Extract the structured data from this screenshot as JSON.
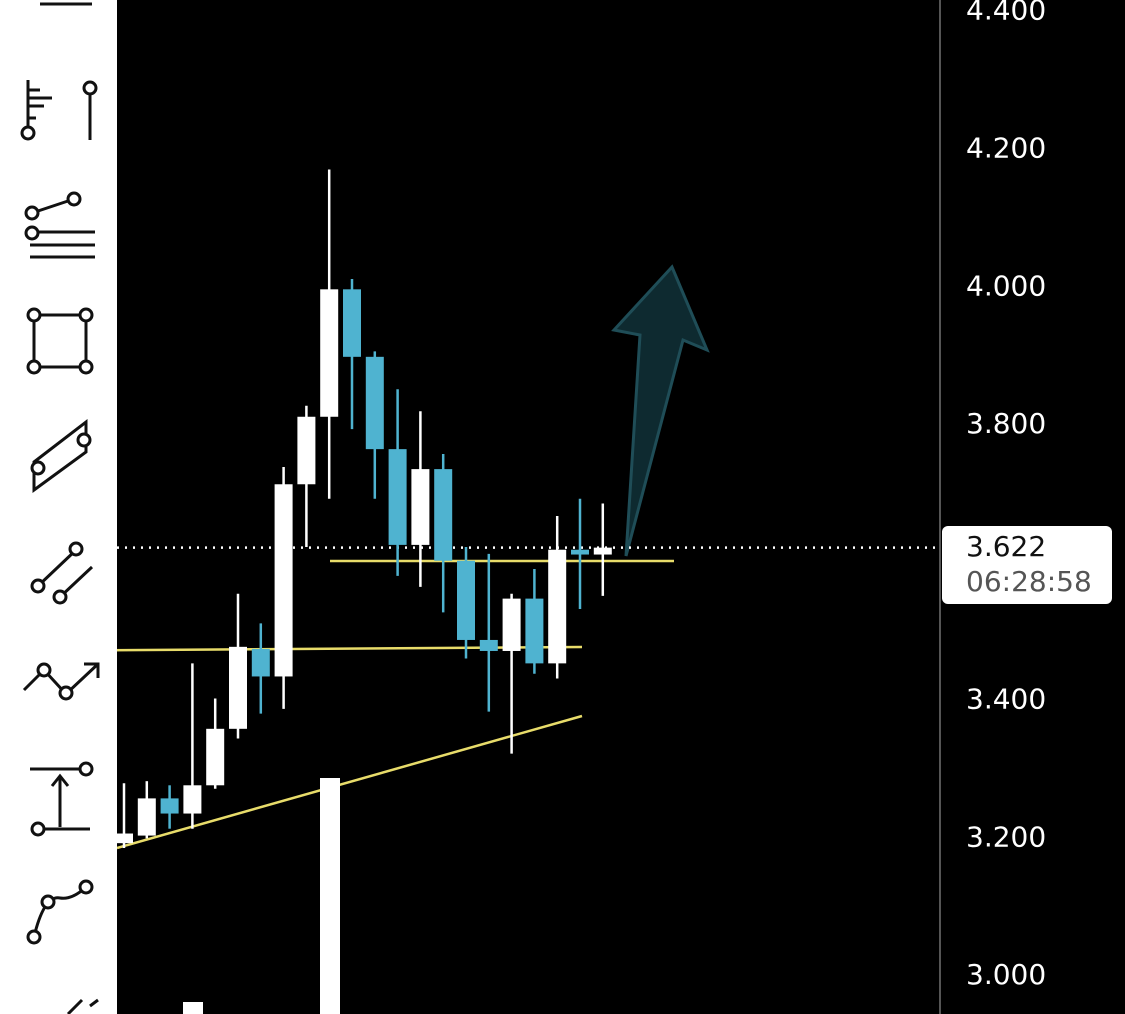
{
  "chart_data": {
    "type": "candlestick",
    "categories": [
      null,
      null,
      null,
      null,
      null,
      null,
      null,
      null,
      null,
      null,
      null,
      null,
      null,
      null,
      null,
      null,
      null,
      null,
      null,
      null,
      null,
      null
    ],
    "open": [
      3.193,
      3.204,
      3.258,
      3.236,
      3.277,
      3.359,
      3.475,
      3.435,
      3.714,
      3.812,
      3.997,
      3.899,
      3.765,
      3.626,
      3.736,
      3.603,
      3.488,
      3.472,
      3.548,
      3.454,
      3.619,
      3.612
    ],
    "high": [
      3.28,
      3.283,
      3.277,
      3.454,
      3.403,
      3.555,
      3.512,
      3.739,
      3.828,
      4.171,
      4.012,
      3.907,
      3.852,
      3.82,
      3.758,
      3.623,
      3.613,
      3.555,
      3.591,
      3.668,
      3.693,
      3.686
    ],
    "low": [
      3.186,
      3.2,
      3.214,
      3.214,
      3.272,
      3.345,
      3.381,
      3.388,
      3.623,
      3.693,
      3.794,
      3.693,
      3.581,
      3.565,
      3.528,
      3.461,
      3.384,
      3.323,
      3.439,
      3.432,
      3.533,
      3.552
    ],
    "close": [
      3.207,
      3.258,
      3.236,
      3.277,
      3.359,
      3.478,
      3.435,
      3.714,
      3.812,
      3.997,
      3.899,
      3.765,
      3.626,
      3.736,
      3.603,
      3.488,
      3.472,
      3.548,
      3.454,
      3.619,
      3.612,
      3.622
    ],
    "up_color": "#ffffff",
    "down_color": "#4fb3d0",
    "ylim": [
      2.945,
      4.417
    ],
    "yticks": [
      {
        "value": 3.0,
        "label": "3.000"
      },
      {
        "value": 3.2,
        "label": "3.200"
      },
      {
        "value": 3.4,
        "label": "3.400"
      },
      {
        "value": 3.8,
        "label": "3.800"
      },
      {
        "value": 4.0,
        "label": "4.000"
      },
      {
        "value": 4.2,
        "label": "4.200"
      },
      {
        "value": 4.4,
        "label": "4.400"
      }
    ],
    "current_price": 3.622,
    "countdown": "06:28:58"
  }
}
